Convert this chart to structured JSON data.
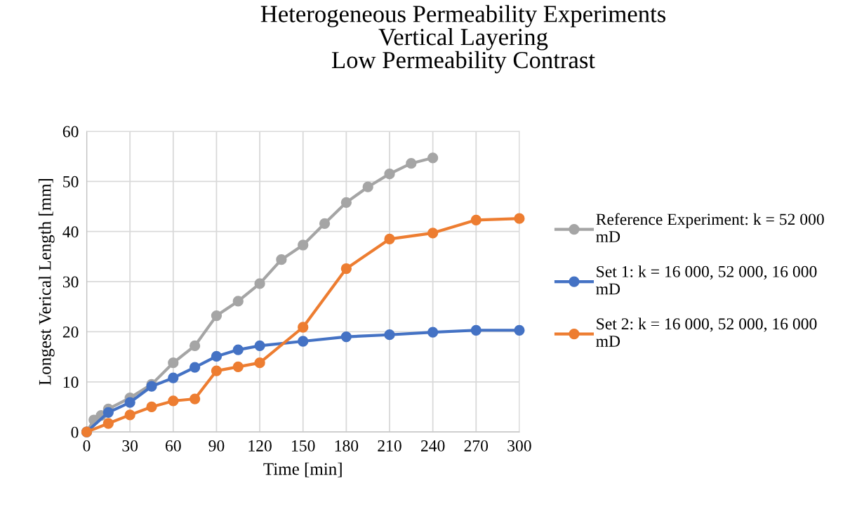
{
  "chart_data": {
    "type": "line",
    "title": "Heterogeneous Permeability Experiments\nVertical Layering\nLow Permeability Contrast",
    "xlabel": "Time [min]",
    "ylabel": "Longest Verical Length [mm]",
    "xlim": [
      0,
      300
    ],
    "xticks": [
      0,
      30,
      60,
      90,
      120,
      150,
      180,
      210,
      240,
      270,
      300
    ],
    "ylim": [
      0,
      60
    ],
    "yticks": [
      0,
      10,
      20,
      30,
      40,
      50,
      60
    ],
    "grid": true,
    "legend": "right",
    "marker": "circle",
    "line_style": "solid",
    "series": [
      {
        "name": "Reference Experiment: k = 52 000\nmD",
        "color": "#a5a5a5",
        "x": [
          0,
          5,
          10,
          15,
          30,
          45,
          60,
          75,
          90,
          105,
          120,
          135,
          150,
          165,
          180,
          195,
          210,
          225,
          240
        ],
        "values": [
          0,
          2.4,
          3.3,
          4.6,
          6.8,
          9.5,
          13.8,
          17.2,
          23.2,
          26.1,
          29.6,
          34.4,
          37.3,
          41.6,
          45.8,
          48.9,
          51.5,
          53.6,
          54.7
        ]
      },
      {
        "name": "Set 1: k = 16 000, 52 000, 16 000\nmD",
        "color": "#4472c4",
        "x": [
          0,
          15,
          30,
          45,
          60,
          75,
          90,
          105,
          120,
          150,
          180,
          210,
          240,
          270,
          300
        ],
        "values": [
          0,
          3.9,
          5.9,
          9.1,
          10.8,
          12.9,
          15.1,
          16.4,
          17.2,
          18.1,
          19.0,
          19.4,
          19.9,
          20.3,
          20.3
        ]
      },
      {
        "name": "Set 2: k = 16 000, 52 000, 16 000\nmD",
        "color": "#ed7d31",
        "x": [
          0,
          15,
          30,
          45,
          60,
          75,
          90,
          105,
          120,
          150,
          180,
          210,
          240,
          270,
          300
        ],
        "values": [
          0,
          1.7,
          3.4,
          5.0,
          6.2,
          6.6,
          12.2,
          13.0,
          13.8,
          20.9,
          32.6,
          38.5,
          39.7,
          42.3,
          42.6
        ]
      }
    ]
  }
}
